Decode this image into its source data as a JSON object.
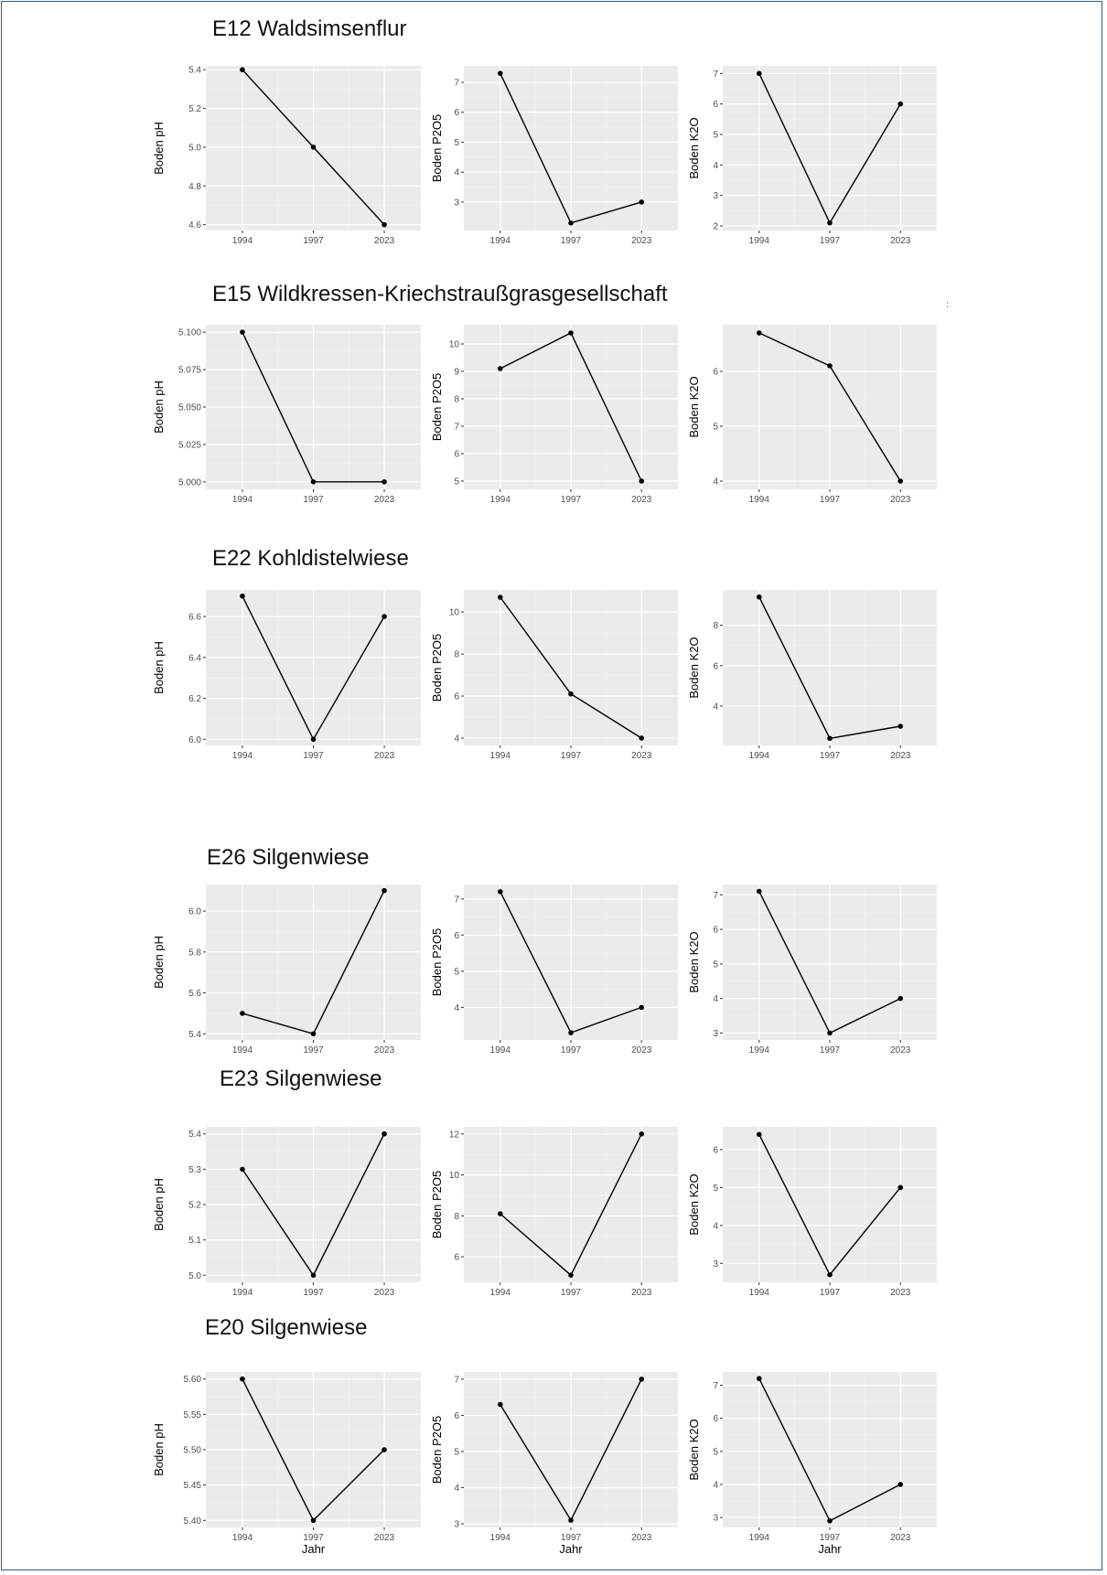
{
  "sections": [
    {
      "title": "E12 Waldsimsenflur"
    },
    {
      "title": "E15 Wildkressen-Kriechstraußgrasgesellschaft"
    },
    {
      "title": "E22 Kohldistelwiese"
    },
    {
      "title": "E26 Silgenwiese"
    },
    {
      "title": "E23 Silgenwiese"
    },
    {
      "title": "E20 Silgenwiese"
    }
  ],
  "stray_mark": ":",
  "chart_data": [
    {
      "type": "line",
      "section": "E12 Waldsimsenflur",
      "x": [
        "1994",
        "1997",
        "2023"
      ],
      "values": [
        5.4,
        5.0,
        4.6
      ],
      "ylabel": "Boden pH",
      "xlabel": "",
      "ylim": [
        4.57,
        5.42
      ],
      "yticks": [
        "4.6",
        "4.8",
        "5.0",
        "5.2",
        "5.4"
      ],
      "grid": true
    },
    {
      "type": "line",
      "section": "E12 Waldsimsenflur",
      "x": [
        "1994",
        "1997",
        "2023"
      ],
      "values": [
        7.3,
        2.3,
        3.0
      ],
      "ylabel": "Boden P2O5",
      "xlabel": "",
      "ylim": [
        2.05,
        7.55
      ],
      "yticks": [
        "3",
        "4",
        "5",
        "6",
        "7"
      ],
      "grid": true
    },
    {
      "type": "line",
      "section": "E12 Waldsimsenflur",
      "x": [
        "1994",
        "1997",
        "2023"
      ],
      "values": [
        7.0,
        2.1,
        6.0
      ],
      "ylabel": "Boden K2O",
      "xlabel": "",
      "ylim": [
        1.85,
        7.25
      ],
      "yticks": [
        "2",
        "3",
        "4",
        "5",
        "6",
        "7"
      ],
      "grid": true
    },
    {
      "type": "line",
      "section": "E15 Wildkressen-Kriechstraußgrasgesellschaft",
      "x": [
        "1994",
        "1997",
        "2023"
      ],
      "values": [
        5.1,
        5.0,
        5.0
      ],
      "ylabel": "Boden pH",
      "xlabel": "",
      "ylim": [
        4.995,
        5.105
      ],
      "yticks": [
        "5.000",
        "5.025",
        "5.050",
        "5.075",
        "5.100"
      ],
      "grid": true
    },
    {
      "type": "line",
      "section": "E15 Wildkressen-Kriechstraußgrasgesellschaft",
      "x": [
        "1994",
        "1997",
        "2023"
      ],
      "values": [
        9.1,
        10.4,
        5.0
      ],
      "ylabel": "Boden P2O5",
      "xlabel": "",
      "ylim": [
        4.7,
        10.7
      ],
      "yticks": [
        "5",
        "6",
        "7",
        "8",
        "9",
        "10"
      ],
      "grid": true
    },
    {
      "type": "line",
      "section": "E15 Wildkressen-Kriechstraußgrasgesellschaft",
      "x": [
        "1994",
        "1997",
        "2023"
      ],
      "values": [
        6.7,
        6.1,
        4.0
      ],
      "ylabel": "Boden K2O",
      "xlabel": "",
      "ylim": [
        3.85,
        6.85
      ],
      "yticks": [
        "4",
        "5",
        "6"
      ],
      "grid": true
    },
    {
      "type": "line",
      "section": "E22 Kohldistelwiese",
      "x": [
        "1994",
        "1997",
        "2023"
      ],
      "values": [
        6.7,
        6.0,
        6.6
      ],
      "ylabel": "Boden pH",
      "xlabel": "",
      "ylim": [
        5.97,
        6.73
      ],
      "yticks": [
        "6.0",
        "6.2",
        "6.4",
        "6.6"
      ],
      "grid": true
    },
    {
      "type": "line",
      "section": "E22 Kohldistelwiese",
      "x": [
        "1994",
        "1997",
        "2023"
      ],
      "values": [
        10.7,
        6.1,
        4.0
      ],
      "ylabel": "Boden P2O5",
      "xlabel": "",
      "ylim": [
        3.65,
        11.05
      ],
      "yticks": [
        "4",
        "6",
        "8",
        "10"
      ],
      "grid": true
    },
    {
      "type": "line",
      "section": "E22 Kohldistelwiese",
      "x": [
        "1994",
        "1997",
        "2023"
      ],
      "values": [
        9.4,
        2.4,
        3.0
      ],
      "ylabel": "Boden K2O",
      "xlabel": "",
      "ylim": [
        2.05,
        9.75
      ],
      "yticks": [
        "4",
        "6",
        "8"
      ],
      "grid": true
    },
    {
      "type": "line",
      "section": "E26 Silgenwiese",
      "x": [
        "1994",
        "1997",
        "2023"
      ],
      "values": [
        5.5,
        5.4,
        6.1
      ],
      "ylabel": "Boden pH",
      "xlabel": "",
      "ylim": [
        5.37,
        6.13
      ],
      "yticks": [
        "5.4",
        "5.6",
        "5.8",
        "6.0"
      ],
      "grid": true
    },
    {
      "type": "line",
      "section": "E26 Silgenwiese",
      "x": [
        "1994",
        "1997",
        "2023"
      ],
      "values": [
        7.2,
        3.3,
        4.0
      ],
      "ylabel": "Boden P2O5",
      "xlabel": "",
      "ylim": [
        3.1,
        7.4
      ],
      "yticks": [
        "4",
        "5",
        "6",
        "7"
      ],
      "grid": true
    },
    {
      "type": "line",
      "section": "E26 Silgenwiese",
      "x": [
        "1994",
        "1997",
        "2023"
      ],
      "values": [
        7.1,
        3.0,
        4.0
      ],
      "ylabel": "Boden K2O",
      "xlabel": "",
      "ylim": [
        2.8,
        7.3
      ],
      "yticks": [
        "3",
        "4",
        "5",
        "6",
        "7"
      ],
      "grid": true
    },
    {
      "type": "line",
      "section": "E23 Silgenwiese",
      "x": [
        "1994",
        "1997",
        "2023"
      ],
      "values": [
        5.3,
        5.0,
        5.4
      ],
      "ylabel": "Boden pH",
      "xlabel": "",
      "ylim": [
        4.98,
        5.42
      ],
      "yticks": [
        "5.0",
        "5.1",
        "5.2",
        "5.3",
        "5.4"
      ],
      "grid": true
    },
    {
      "type": "line",
      "section": "E23 Silgenwiese",
      "x": [
        "1994",
        "1997",
        "2023"
      ],
      "values": [
        8.1,
        5.1,
        12.0
      ],
      "ylabel": "Boden P2O5",
      "xlabel": "",
      "ylim": [
        4.75,
        12.35
      ],
      "yticks": [
        "6",
        "8",
        "10",
        "12"
      ],
      "grid": true
    },
    {
      "type": "line",
      "section": "E23 Silgenwiese",
      "x": [
        "1994",
        "1997",
        "2023"
      ],
      "values": [
        6.4,
        2.7,
        5.0
      ],
      "ylabel": "Boden K2O",
      "xlabel": "",
      "ylim": [
        2.5,
        6.6
      ],
      "yticks": [
        "3",
        "4",
        "5",
        "6"
      ],
      "grid": true
    },
    {
      "type": "line",
      "section": "E20 Silgenwiese",
      "x": [
        "1994",
        "1997",
        "2023"
      ],
      "values": [
        5.6,
        5.4,
        5.5
      ],
      "ylabel": "Boden pH",
      "xlabel": "Jahr",
      "ylim": [
        5.39,
        5.61
      ],
      "yticks": [
        "5.40",
        "5.45",
        "5.50",
        "5.55",
        "5.60"
      ],
      "grid": true
    },
    {
      "type": "line",
      "section": "E20 Silgenwiese",
      "x": [
        "1994",
        "1997",
        "2023"
      ],
      "values": [
        6.3,
        3.1,
        7.0
      ],
      "ylabel": "Boden P2O5",
      "xlabel": "Jahr",
      "ylim": [
        2.9,
        7.2
      ],
      "yticks": [
        "3",
        "4",
        "5",
        "6",
        "7"
      ],
      "grid": true
    },
    {
      "type": "line",
      "section": "E20 Silgenwiese",
      "x": [
        "1994",
        "1997",
        "2023"
      ],
      "values": [
        7.2,
        2.9,
        4.0
      ],
      "ylabel": "Boden K2O",
      "xlabel": "Jahr",
      "ylim": [
        2.7,
        7.4
      ],
      "yticks": [
        "3",
        "4",
        "5",
        "6",
        "7"
      ],
      "grid": true
    }
  ]
}
